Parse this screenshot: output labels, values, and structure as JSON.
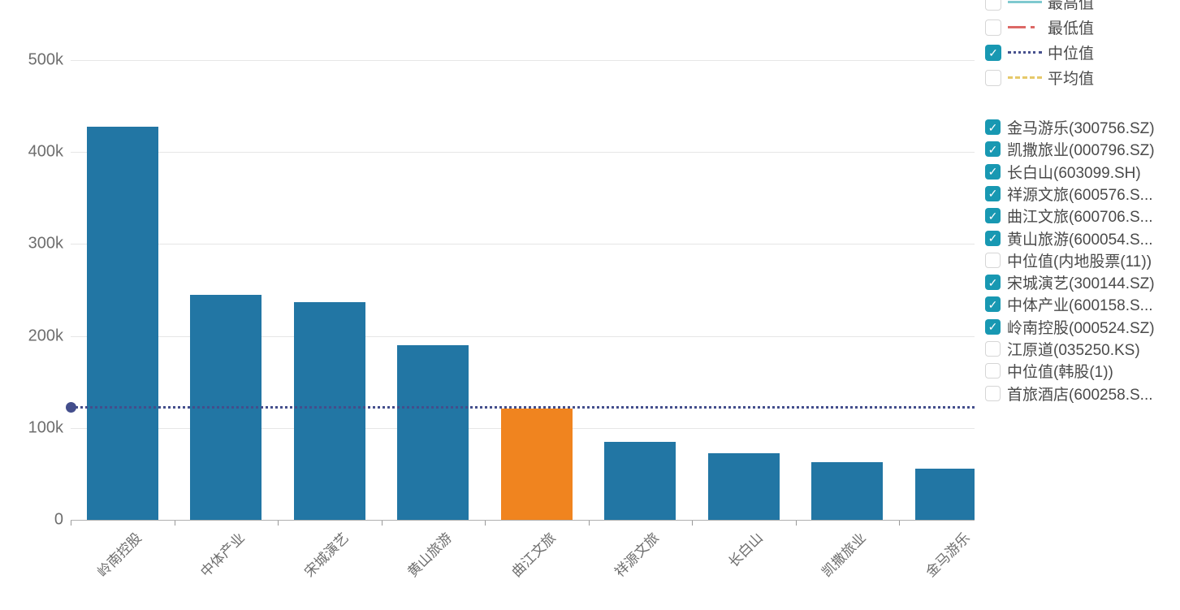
{
  "chart_data": {
    "type": "bar",
    "title": "",
    "xlabel": "",
    "ylabel": "",
    "categories": [
      "岭南控股",
      "中体产业",
      "宋城演艺",
      "黄山旅游",
      "曲江文旅",
      "祥源文旅",
      "长白山",
      "凯撒旅业",
      "金马游乐"
    ],
    "values": [
      428000,
      245000,
      237000,
      190000,
      121000,
      85000,
      72000,
      63000,
      56000
    ],
    "bar_color": "#2276a4",
    "highlight_category": "曲江文旅",
    "highlight_color": "#f0841f",
    "median_line": {
      "label": "中位值",
      "value": 122000,
      "color": "#434e8c",
      "style": "dotted"
    },
    "y_axis": {
      "ticks": [
        {
          "label": "0",
          "value": 0
        },
        {
          "label": "100k",
          "value": 100000
        },
        {
          "label": "200k",
          "value": 200000
        },
        {
          "label": "300k",
          "value": 300000
        },
        {
          "label": "400k",
          "value": 400000
        },
        {
          "label": "500k",
          "value": 500000
        }
      ],
      "min": 0,
      "max": 500000,
      "grid": true
    },
    "legend_position": "right"
  },
  "legend": {
    "checkbox_checked_color": "#1898b2",
    "check_glyph": "✓",
    "stat_lines": [
      {
        "label": "最高值",
        "checked": false,
        "color": "#7fc9cf",
        "style": "solid"
      },
      {
        "label": "最低值",
        "checked": false,
        "color": "#dc6866",
        "style": "dashdot"
      },
      {
        "label": "中位值",
        "checked": true,
        "color": "#47518e",
        "style": "dotted"
      },
      {
        "label": "平均值",
        "checked": false,
        "color": "#e6c96b",
        "style": "dashed"
      }
    ],
    "series": [
      {
        "label": "金马游乐(300756.SZ)",
        "checked": true
      },
      {
        "label": "凯撒旅业(000796.SZ)",
        "checked": true
      },
      {
        "label": "长白山(603099.SH)",
        "checked": true
      },
      {
        "label": "祥源文旅(600576.S...",
        "checked": true
      },
      {
        "label": "曲江文旅(600706.S...",
        "checked": true
      },
      {
        "label": "黄山旅游(600054.S...",
        "checked": true
      },
      {
        "label": "中位值(内地股票(11))",
        "checked": false
      },
      {
        "label": "宋城演艺(300144.SZ)",
        "checked": true
      },
      {
        "label": "中体产业(600158.S...",
        "checked": true
      },
      {
        "label": "岭南控股(000524.SZ)",
        "checked": true
      },
      {
        "label": "江原道(035250.KS)",
        "checked": false
      },
      {
        "label": "中位值(韩股(1))",
        "checked": false
      },
      {
        "label": "首旅酒店(600258.S...",
        "checked": false
      }
    ]
  }
}
